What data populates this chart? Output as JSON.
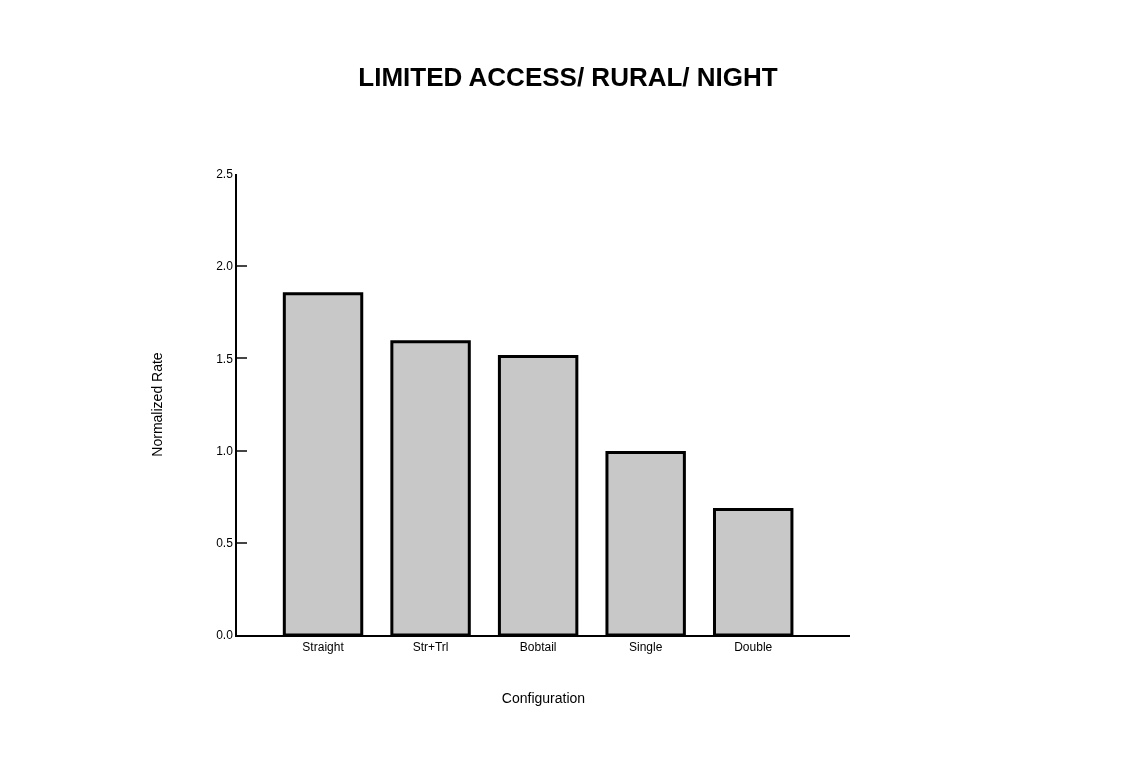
{
  "chart_data": {
    "type": "bar",
    "title": "LIMITED ACCESS/ RURAL/ NIGHT",
    "xlabel": "Configuration",
    "ylabel": "Normalized Rate",
    "categories": [
      "Straight",
      "Str+Trl",
      "Bobtail",
      "Single",
      "Double"
    ],
    "values": [
      1.85,
      1.59,
      1.51,
      0.99,
      0.68
    ],
    "color": "#c8c8c8",
    "ylim": [
      0,
      2.5
    ],
    "yticks": [
      {
        "value": 0,
        "label": "0.0"
      },
      {
        "value": 0.5,
        "label": "0.5"
      },
      {
        "value": 1,
        "label": "1.0"
      },
      {
        "value": 1.5,
        "label": "1.5"
      },
      {
        "value": 2,
        "label": "2.0"
      },
      {
        "value": 2.5,
        "label": "2.5"
      }
    ],
    "legend": false
  }
}
